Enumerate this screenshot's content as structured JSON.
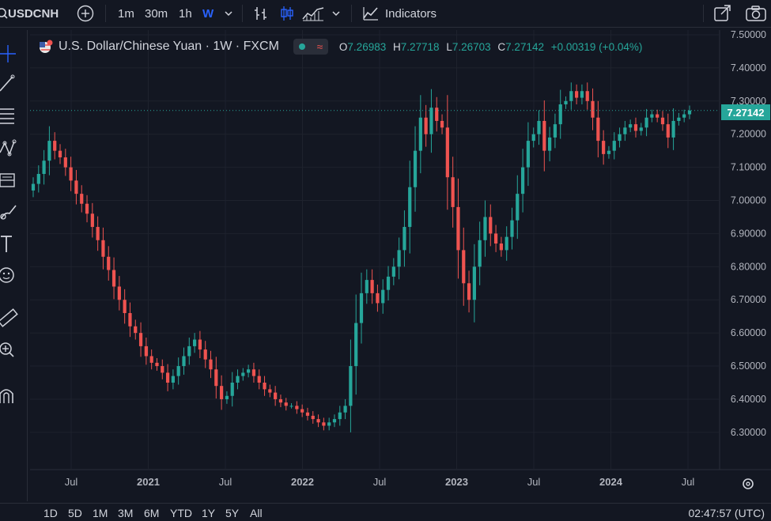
{
  "toolbar": {
    "symbol": "USDCNH",
    "timeframes": [
      "1m",
      "30m",
      "1h",
      "W"
    ],
    "active_timeframe": "W",
    "indicators_label": "Indicators"
  },
  "legend": {
    "title": "U.S. Dollar/Chinese Yuan · 1W · FXCM",
    "open_label": "O",
    "open": "7.26983",
    "high_label": "H",
    "high": "7.27718",
    "low_label": "L",
    "low": "7.26703",
    "close_label": "C",
    "close": "7.27142",
    "change": "+0.00319 (+0.04%)"
  },
  "price_label": "7.27142",
  "bottom": {
    "ranges": [
      "1D",
      "5D",
      "1M",
      "3M",
      "6M",
      "YTD",
      "1Y",
      "5Y",
      "All"
    ],
    "clock": "02:47:57 (UTC)"
  },
  "colors": {
    "background": "#131722",
    "up": "#26a69a",
    "down": "#ef5350",
    "grid": "#1e222d",
    "accent": "#2962ff"
  },
  "chart_data": {
    "type": "candlestick",
    "symbol": "USDCNH",
    "title": "U.S. Dollar/Chinese Yuan · 1W · FXCM",
    "interval": "1W",
    "ylim": [
      6.24,
      7.5
    ],
    "y_ticks": [
      "7.50000",
      "7.40000",
      "7.30000",
      "7.20000",
      "7.10000",
      "7.00000",
      "6.90000",
      "6.80000",
      "6.70000",
      "6.60000",
      "6.50000",
      "6.40000",
      "6.30000"
    ],
    "x_ticks": [
      "Jul",
      "2021",
      "Jul",
      "2022",
      "Jul",
      "2023",
      "Jul",
      "2024",
      "Jul"
    ],
    "last_price": 7.27142,
    "close_series": [
      7.05,
      7.08,
      7.12,
      7.18,
      7.15,
      7.13,
      7.1,
      7.06,
      7.02,
      6.99,
      6.96,
      6.92,
      6.88,
      6.83,
      6.79,
      6.74,
      6.7,
      6.66,
      6.62,
      6.6,
      6.56,
      6.53,
      6.51,
      6.5,
      6.48,
      6.45,
      6.47,
      6.5,
      6.53,
      6.56,
      6.58,
      6.55,
      6.52,
      6.49,
      6.44,
      6.4,
      6.41,
      6.45,
      6.47,
      6.48,
      6.49,
      6.47,
      6.45,
      6.43,
      6.42,
      6.4,
      6.39,
      6.38,
      6.38,
      6.37,
      6.36,
      6.35,
      6.34,
      6.33,
      6.32,
      6.33,
      6.34,
      6.36,
      6.38,
      6.5,
      6.63,
      6.72,
      6.76,
      6.72,
      6.69,
      6.73,
      6.77,
      6.8,
      6.85,
      6.92,
      7.04,
      7.15,
      7.25,
      7.2,
      7.28,
      7.24,
      7.22,
      7.07,
      6.98,
      6.85,
      6.75,
      6.7,
      6.8,
      6.88,
      6.95,
      6.9,
      6.87,
      6.85,
      6.89,
      6.94,
      7.02,
      7.1,
      7.18,
      7.2,
      7.24,
      7.15,
      7.19,
      7.23,
      7.29,
      7.3,
      7.33,
      7.31,
      7.33,
      7.3,
      7.25,
      7.18,
      7.14,
      7.15,
      7.18,
      7.2,
      7.22,
      7.23,
      7.21,
      7.22,
      7.25,
      7.26,
      7.25,
      7.23,
      7.19,
      7.24,
      7.25,
      7.26,
      7.27142
    ]
  }
}
